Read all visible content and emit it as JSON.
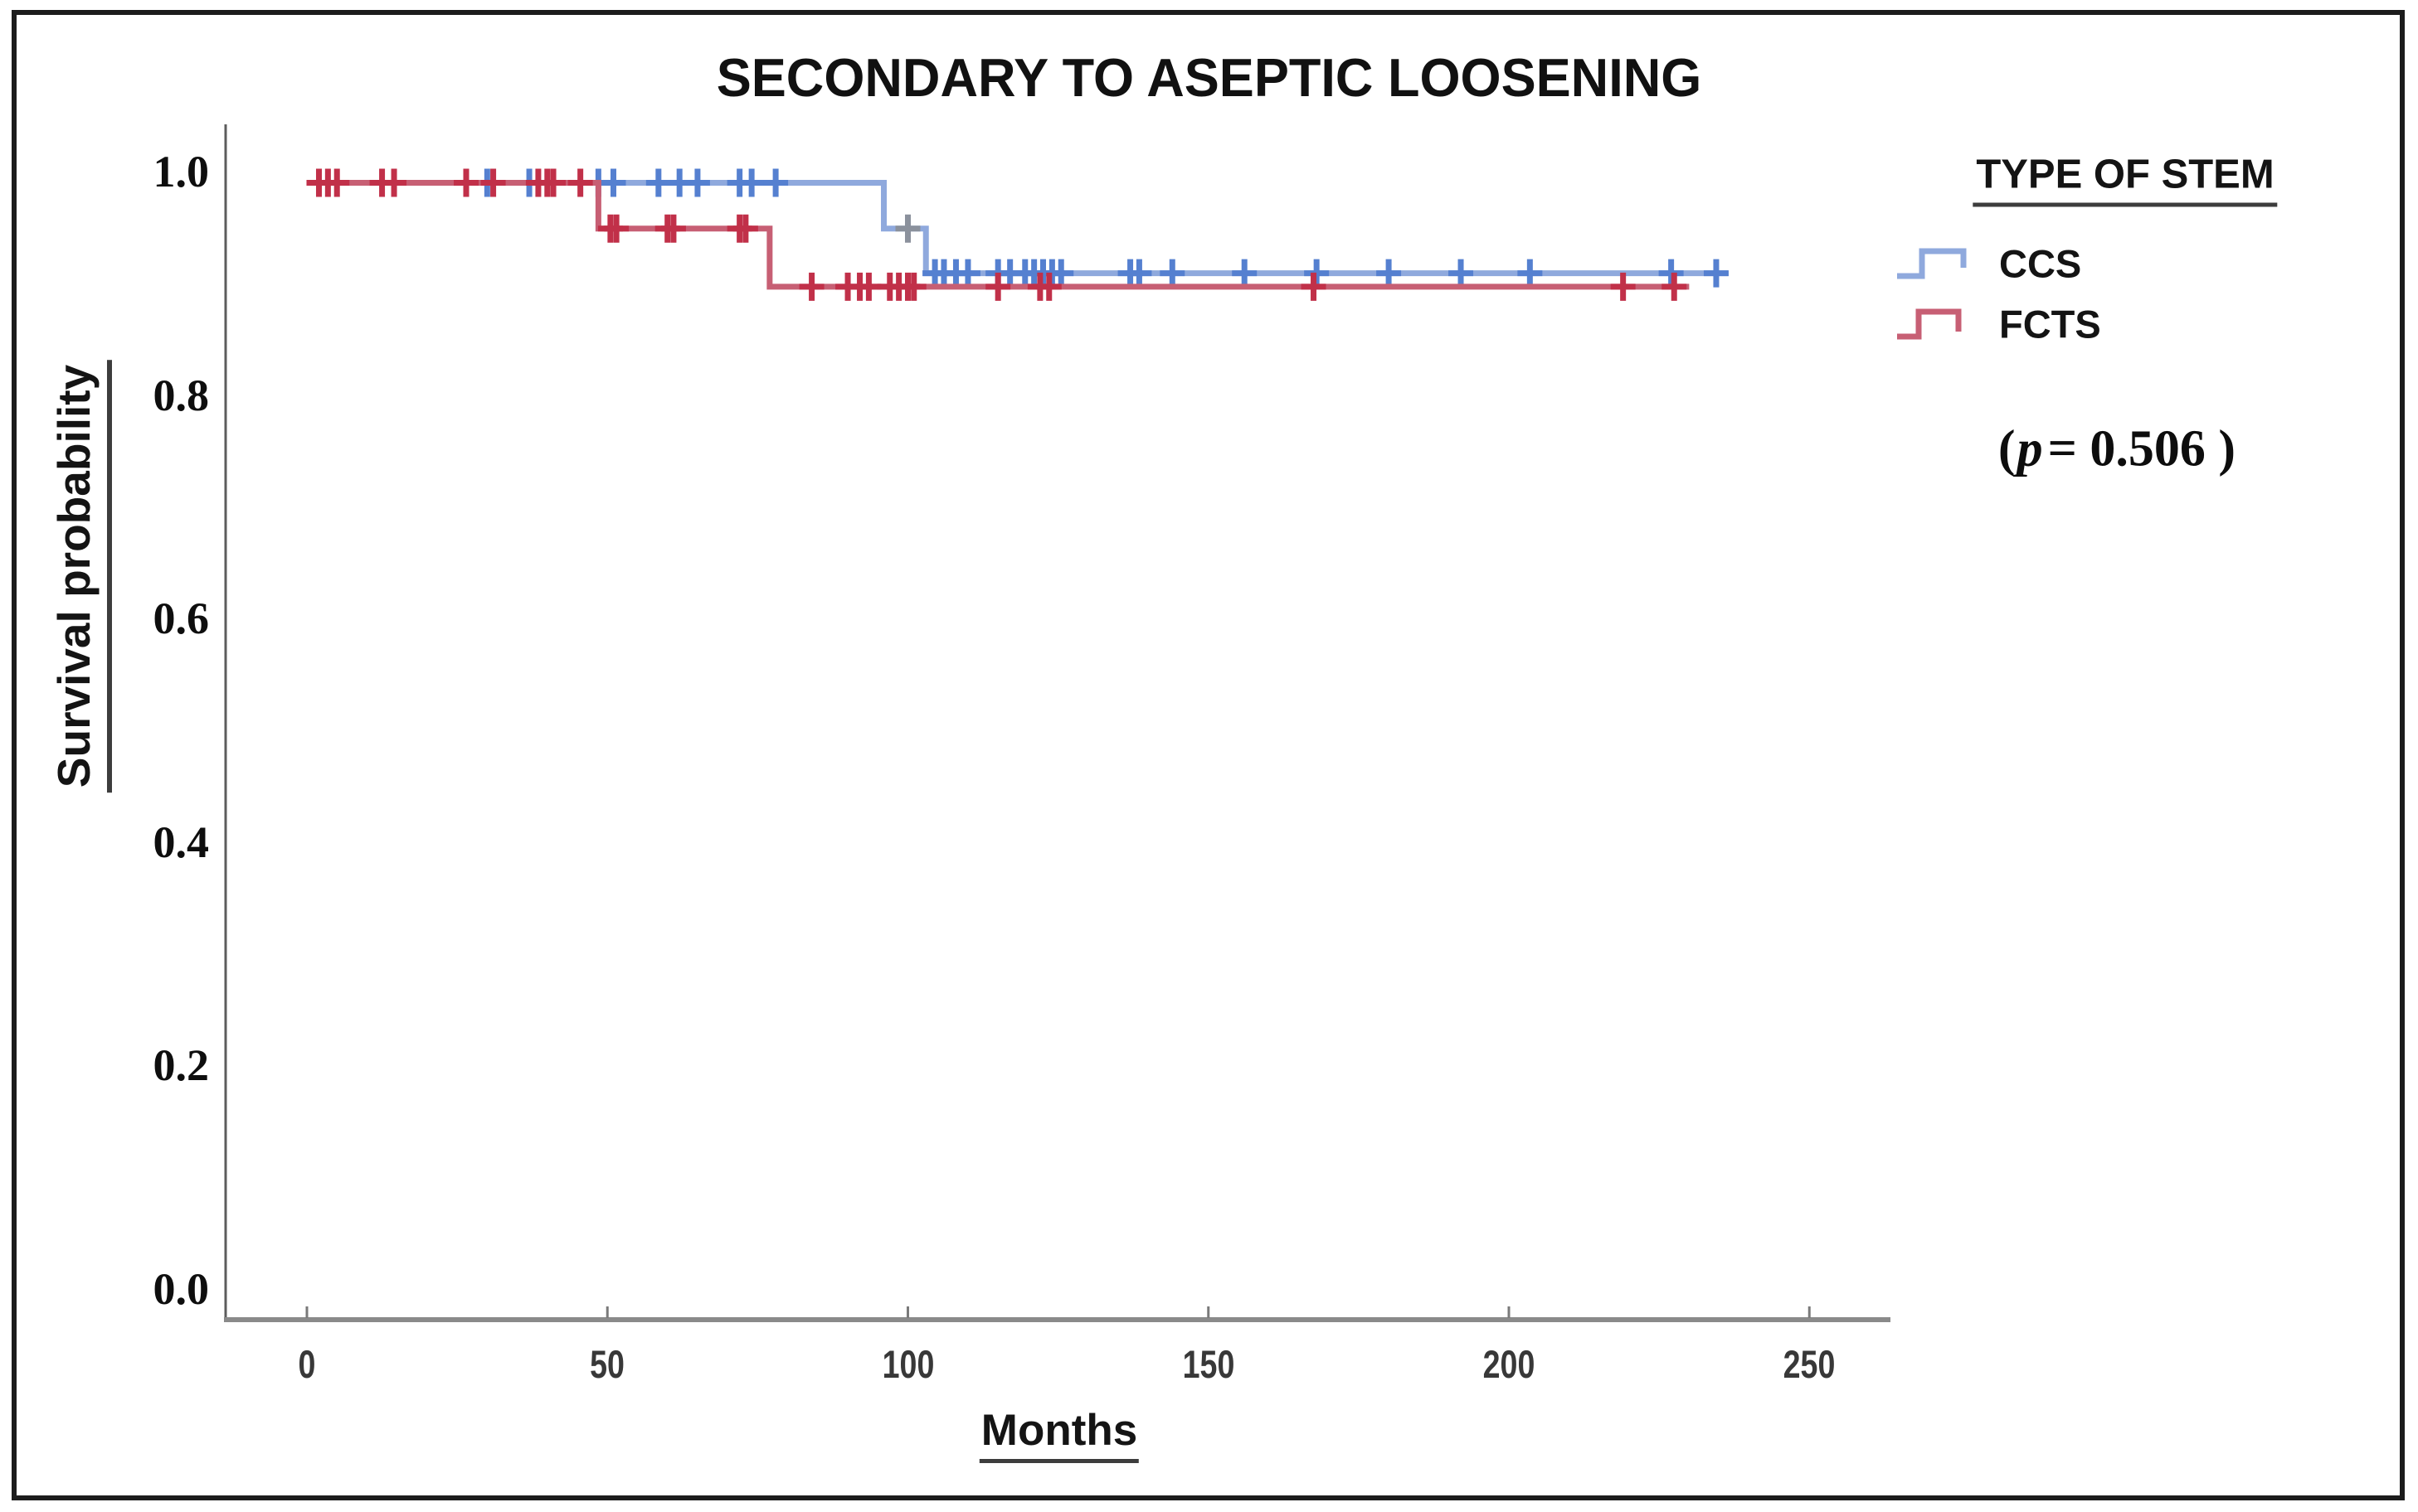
{
  "chart_data": {
    "type": "line",
    "chart_kind": "kaplan-meier-step",
    "title": "SECONDARY TO ASEPTIC LOOSENING",
    "xlabel": "Months",
    "ylabel": "Survival probability",
    "x_tick_labels": [
      "0",
      "50",
      "100",
      "150",
      "200",
      "250"
    ],
    "x_tick_values": [
      0,
      50,
      100,
      150,
      200,
      250
    ],
    "y_tick_labels": [
      "1.0",
      "0.8",
      "0.6",
      "0.4",
      "0.2",
      "0.0"
    ],
    "y_tick_values": [
      1.0,
      0.8,
      0.6,
      0.4,
      0.2,
      0.0
    ],
    "x_range": [
      0,
      250
    ],
    "y_range": [
      0.0,
      1.0
    ],
    "grid": "off",
    "legend_position": "top-right",
    "legend": {
      "title": "TYPE OF STEM"
    },
    "p_annotation": {
      "open": "(",
      "variable": "p",
      "rest": "= 0.506 )"
    },
    "p_value": 0.506,
    "series": [
      {
        "name": "CCS",
        "line_color": "#8FA9DD",
        "censor_color": "#5580D0",
        "start": [
          2,
          0.99
        ],
        "steps": [
          [
            96,
            0.949
          ],
          [
            103,
            0.909
          ]
        ],
        "end_t": 236.5,
        "censors": [
          [
            30,
            0.99
          ],
          [
            37,
            0.99
          ],
          [
            48.5,
            0.99
          ],
          [
            51,
            0.99
          ],
          [
            58.5,
            0.99
          ],
          [
            62,
            0.99
          ],
          [
            65,
            0.99
          ],
          [
            72,
            0.99
          ],
          [
            74,
            0.99
          ],
          [
            78,
            0.99
          ],
          [
            100,
            0.949,
            "#8B919C"
          ],
          [
            104.5,
            0.909
          ],
          [
            106,
            0.909
          ],
          [
            108,
            0.909
          ],
          [
            110,
            0.909
          ],
          [
            115,
            0.909
          ],
          [
            117,
            0.909
          ],
          [
            119.5,
            0.909
          ],
          [
            121,
            0.909
          ],
          [
            122.5,
            0.909
          ],
          [
            124,
            0.909
          ],
          [
            125.5,
            0.909
          ],
          [
            137,
            0.909
          ],
          [
            138.5,
            0.909
          ],
          [
            144,
            0.909
          ],
          [
            156,
            0.909
          ],
          [
            168,
            0.909
          ],
          [
            180,
            0.909
          ],
          [
            192,
            0.909
          ],
          [
            203.5,
            0.909
          ],
          [
            227,
            0.909
          ],
          [
            234.5,
            0.909
          ]
        ]
      },
      {
        "name": "FCTS",
        "line_color": "#C75F74",
        "censor_color": "#C13049",
        "start": [
          2,
          0.99
        ],
        "steps": [
          [
            48.5,
            0.949
          ],
          [
            77,
            0.897
          ]
        ],
        "end_t": 230,
        "censors": [
          [
            2,
            0.99
          ],
          [
            3.5,
            0.99
          ],
          [
            5,
            0.99
          ],
          [
            12.5,
            0.99
          ],
          [
            14.5,
            0.99
          ],
          [
            26.5,
            0.99
          ],
          [
            31,
            0.99
          ],
          [
            38.5,
            0.99
          ],
          [
            40,
            0.99
          ],
          [
            41,
            0.99
          ],
          [
            45.5,
            0.99
          ],
          [
            50.5,
            0.949
          ],
          [
            51.5,
            0.949
          ],
          [
            60,
            0.949
          ],
          [
            61,
            0.949
          ],
          [
            72,
            0.949
          ],
          [
            73,
            0.949
          ],
          [
            84,
            0.897
          ],
          [
            90,
            0.897
          ],
          [
            92,
            0.897
          ],
          [
            93.5,
            0.897
          ],
          [
            97,
            0.897
          ],
          [
            98.5,
            0.897
          ],
          [
            100,
            0.897
          ],
          [
            101,
            0.897
          ],
          [
            115,
            0.897
          ],
          [
            122,
            0.897
          ],
          [
            123.5,
            0.897
          ],
          [
            167.5,
            0.897
          ],
          [
            219,
            0.897
          ],
          [
            227.5,
            0.897
          ]
        ]
      }
    ]
  }
}
